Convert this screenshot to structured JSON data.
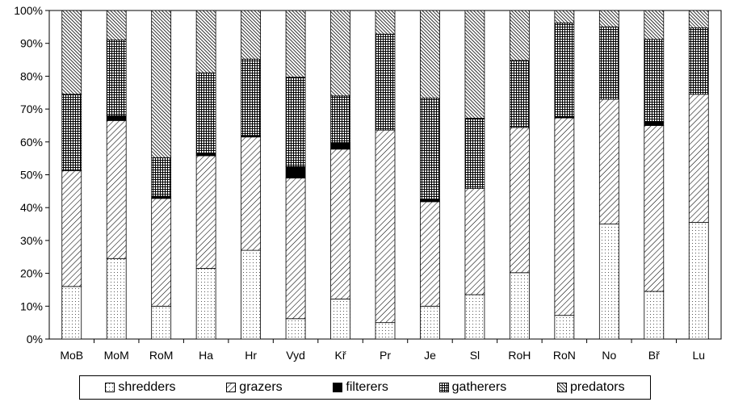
{
  "chart_data": {
    "type": "bar",
    "stacked": true,
    "normalized": true,
    "categories": [
      "MoB",
      "MoM",
      "RoM",
      "Ha",
      "Hr",
      "Vyd",
      "Kř",
      "Pr",
      "Je",
      "Sl",
      "RoH",
      "RoN",
      "No",
      "Bř",
      "Lu"
    ],
    "series": [
      {
        "name": "shredders",
        "values": [
          16,
          24.5,
          10,
          21.5,
          27,
          6.2,
          12.2,
          5,
          10,
          13.5,
          20.2,
          7.2,
          35,
          14.5,
          35.5
        ]
      },
      {
        "name": "grazers",
        "values": [
          35.2,
          42,
          32.8,
          34.3,
          34.5,
          42.8,
          45.6,
          58.6,
          31.8,
          32.3,
          44.2,
          60.1,
          38,
          50.5,
          39
        ]
      },
      {
        "name": "filterers",
        "values": [
          0,
          1.5,
          0.7,
          0.8,
          0.5,
          3.5,
          2,
          0,
          0.7,
          0,
          0,
          0.5,
          0,
          1,
          0
        ]
      },
      {
        "name": "gatherers",
        "values": [
          23.3,
          23,
          11.7,
          24.4,
          23.2,
          27.2,
          14.2,
          29.2,
          30.8,
          21.4,
          20.4,
          28.4,
          22,
          25.2,
          20.2
        ]
      },
      {
        "name": "predators",
        "values": [
          25.5,
          9,
          44.8,
          19,
          14.8,
          20.3,
          26,
          7.2,
          26.7,
          32.8,
          15.2,
          3.8,
          5,
          8.8,
          5.3
        ]
      }
    ],
    "y_ticks": [
      "0%",
      "10%",
      "20%",
      "30%",
      "40%",
      "50%",
      "60%",
      "70%",
      "80%",
      "90%",
      "100%"
    ],
    "ylim": [
      0,
      100
    ],
    "legend_position": "bottom",
    "grid": false
  }
}
